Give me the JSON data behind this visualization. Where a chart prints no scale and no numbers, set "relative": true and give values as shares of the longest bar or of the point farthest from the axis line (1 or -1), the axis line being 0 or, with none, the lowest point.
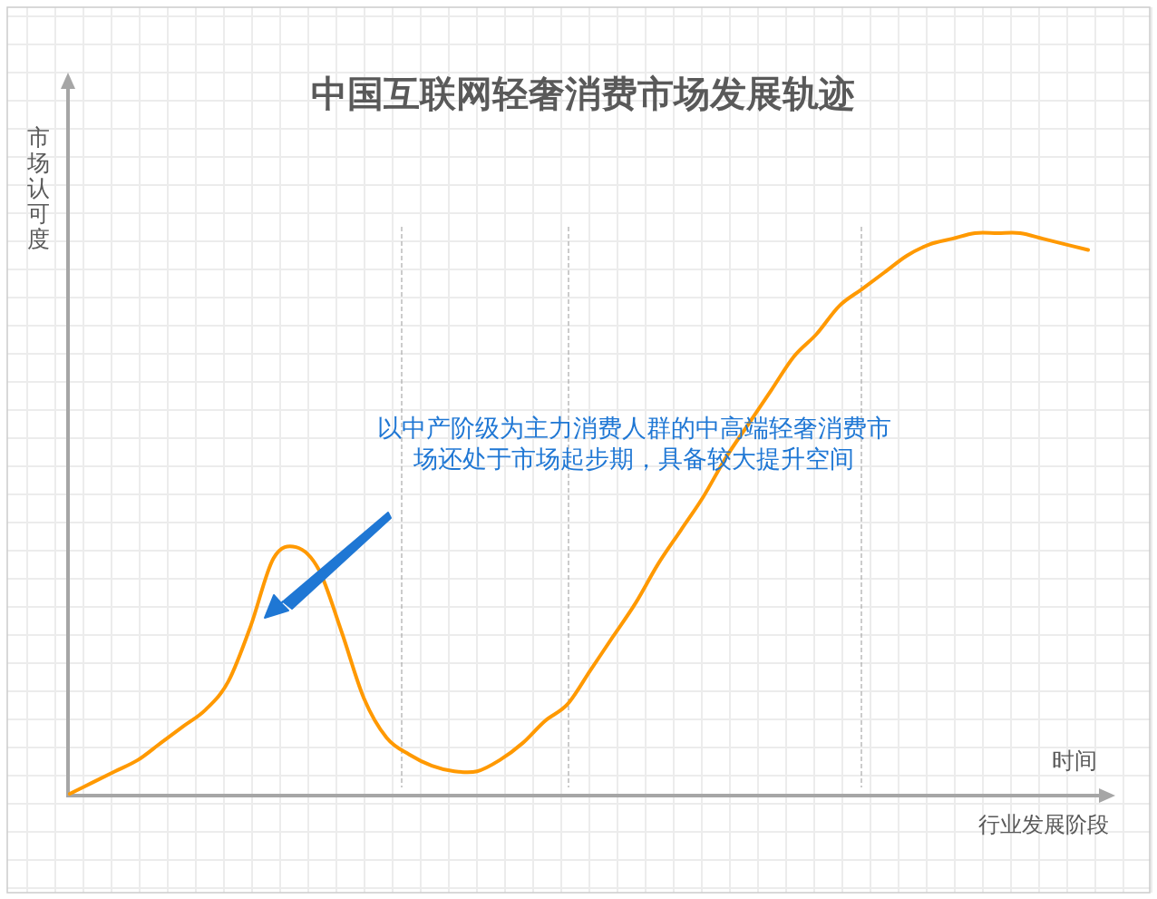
{
  "chart_data": {
    "type": "line",
    "title": "中国互联网轻奢消费市场发展轨迹",
    "xlabel": "行业发展阶段",
    "ylabel": "市场认可度",
    "relative": true,
    "annotations": [
      "以中产阶级为主力消费人群的中高端轻奢消费市场还处于市场起步期，具备较大提升空间",
      "时间"
    ],
    "categories": [
      null,
      null,
      null,
      null,
      null,
      null,
      null,
      null,
      null,
      null,
      null,
      null,
      null,
      null,
      null,
      null,
      null,
      null,
      null,
      null,
      null,
      null,
      null,
      null,
      null,
      null,
      null,
      null,
      null,
      null,
      null,
      null,
      null,
      null,
      null,
      null,
      null,
      null,
      null,
      null,
      null,
      null,
      null,
      null,
      null,
      null
    ],
    "series": [
      {
        "color": "#ff9900",
        "values": [
          0.0,
          0.02,
          0.04,
          0.06,
          0.09,
          0.12,
          0.15,
          0.2,
          0.3,
          0.42,
          0.44,
          0.4,
          0.29,
          0.17,
          0.1,
          0.07,
          0.05,
          0.04,
          0.04,
          0.06,
          0.09,
          0.13,
          0.16,
          0.22,
          0.28,
          0.34,
          0.41,
          0.47,
          0.53,
          0.6,
          0.66,
          0.72,
          0.78,
          0.82,
          0.87,
          0.9,
          0.93,
          0.96,
          0.98,
          0.99,
          1.0,
          1.0,
          1.0,
          0.99,
          0.98,
          0.97
        ]
      }
    ],
    "grid": true
  }
}
